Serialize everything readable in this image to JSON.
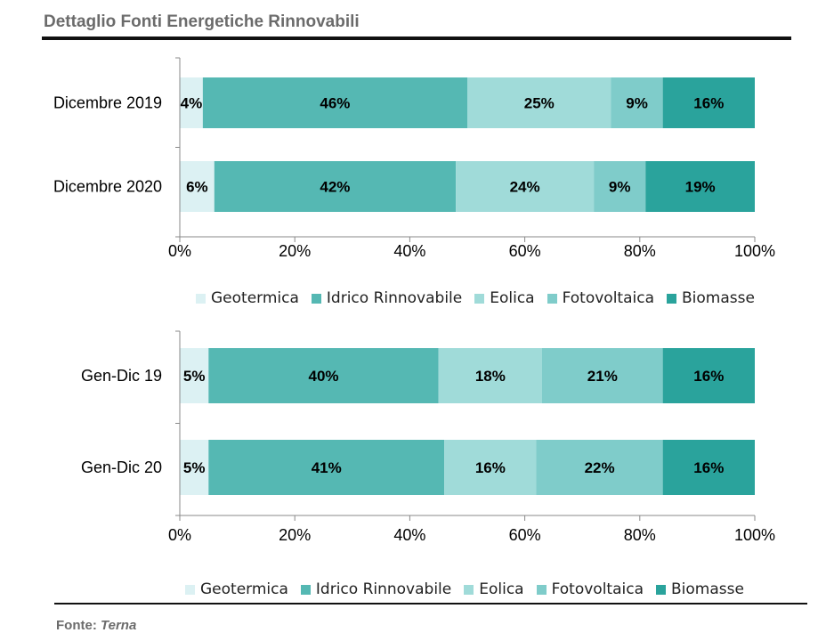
{
  "page": {
    "title": "Dettaglio Fonti Energetiche Rinnovabili",
    "source_label": "Fonte:",
    "source_value": "Terna"
  },
  "colors": {
    "Geotermica": "#dcf1f3",
    "Idrico Rinnovabile": "#55b8b3",
    "Eolica": "#a0dbd9",
    "Fotovoltaica": "#7fccca",
    "Biomasse": "#2aa39c"
  },
  "chart_data": [
    {
      "type": "bar",
      "orientation": "horizontal",
      "stacked": "percent",
      "categories": [
        "Dicembre 2019",
        "Dicembre 2020"
      ],
      "series": [
        {
          "name": "Geotermica",
          "values": [
            4,
            6
          ],
          "labels": [
            "4%",
            "6%"
          ]
        },
        {
          "name": "Idrico Rinnovabile",
          "values": [
            46,
            42
          ],
          "labels": [
            "46%",
            "42%"
          ]
        },
        {
          "name": "Eolica",
          "values": [
            25,
            24
          ],
          "labels": [
            "25%",
            "24%"
          ]
        },
        {
          "name": "Fotovoltaica",
          "values": [
            9,
            9
          ],
          "labels": [
            "9%",
            "9%"
          ]
        },
        {
          "name": "Biomasse",
          "values": [
            16,
            19
          ],
          "labels": [
            "16%",
            "19%"
          ]
        }
      ],
      "xlim": [
        0,
        100
      ],
      "xticks": [
        "0%",
        "20%",
        "40%",
        "60%",
        "80%",
        "100%"
      ],
      "grid": false,
      "legend_position": "bottom"
    },
    {
      "type": "bar",
      "orientation": "horizontal",
      "stacked": "percent",
      "categories": [
        "Gen-Dic 19",
        "Gen-Dic 20"
      ],
      "series": [
        {
          "name": "Geotermica",
          "values": [
            5,
            5
          ],
          "labels": [
            "5%",
            "5%"
          ]
        },
        {
          "name": "Idrico Rinnovabile",
          "values": [
            40,
            41
          ],
          "labels": [
            "40%",
            "41%"
          ]
        },
        {
          "name": "Eolica",
          "values": [
            18,
            16
          ],
          "labels": [
            "18%",
            "16%"
          ]
        },
        {
          "name": "Fotovoltaica",
          "values": [
            21,
            22
          ],
          "labels": [
            "21%",
            "22%"
          ]
        },
        {
          "name": "Biomasse",
          "values": [
            16,
            16
          ],
          "labels": [
            "16%",
            "16%"
          ]
        }
      ],
      "xlim": [
        0,
        100
      ],
      "xticks": [
        "0%",
        "20%",
        "40%",
        "60%",
        "80%",
        "100%"
      ],
      "grid": false,
      "legend_position": "bottom"
    }
  ]
}
